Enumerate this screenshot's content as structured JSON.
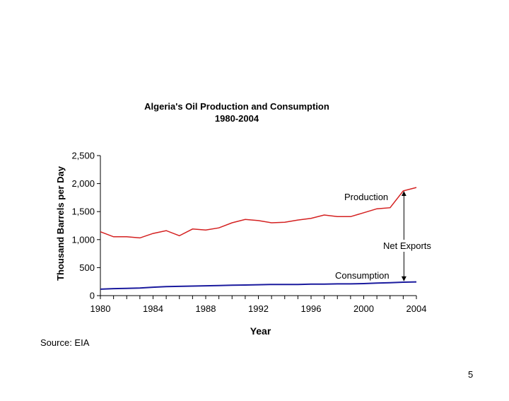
{
  "slide": {
    "source": "Source: EIA",
    "page_number": "5"
  },
  "chart_data": {
    "type": "line",
    "title": "Algeria's Oil Production and Consumption",
    "subtitle": "1980-2004",
    "xlabel": "Year",
    "ylabel": "Thousand Barrels per Day",
    "xlim": [
      1980,
      2004
    ],
    "ylim": [
      0,
      2500
    ],
    "x_ticks": [
      1980,
      1984,
      1988,
      1992,
      1996,
      2000,
      2004
    ],
    "y_ticks": [
      0,
      500,
      1000,
      1500,
      2000,
      2500
    ],
    "y_tick_labels": [
      "0",
      "500",
      "1,000",
      "1,500",
      "2,000",
      "2,500"
    ],
    "grid": false,
    "series": [
      {
        "name": "Production",
        "color": "#d42020",
        "x": [
          1980,
          1981,
          1982,
          1983,
          1984,
          1985,
          1986,
          1987,
          1988,
          1989,
          1990,
          1991,
          1992,
          1993,
          1994,
          1995,
          1996,
          1997,
          1998,
          1999,
          2000,
          2001,
          2002,
          2003,
          2004
        ],
        "values": [
          1140,
          1050,
          1050,
          1030,
          1110,
          1160,
          1070,
          1190,
          1170,
          1210,
          1300,
          1360,
          1340,
          1300,
          1310,
          1350,
          1380,
          1440,
          1410,
          1410,
          1480,
          1550,
          1570,
          1870,
          1930
        ]
      },
      {
        "name": "Consumption",
        "color": "#1a1a9e",
        "x": [
          1980,
          1981,
          1982,
          1983,
          1984,
          1985,
          1986,
          1987,
          1988,
          1989,
          1990,
          1991,
          1992,
          1993,
          1994,
          1995,
          1996,
          1997,
          1998,
          1999,
          2000,
          2001,
          2002,
          2003,
          2004
        ],
        "values": [
          115,
          125,
          130,
          135,
          150,
          160,
          165,
          170,
          175,
          180,
          185,
          190,
          195,
          200,
          200,
          200,
          205,
          205,
          210,
          210,
          215,
          225,
          230,
          240,
          245
        ]
      }
    ],
    "annotations": [
      {
        "text": "Production",
        "series": "Production"
      },
      {
        "text": "Consumption",
        "series": "Consumption"
      },
      {
        "text": "Net Exports",
        "type": "double-arrow",
        "x": 2003,
        "from": 240,
        "to": 1870
      }
    ]
  }
}
